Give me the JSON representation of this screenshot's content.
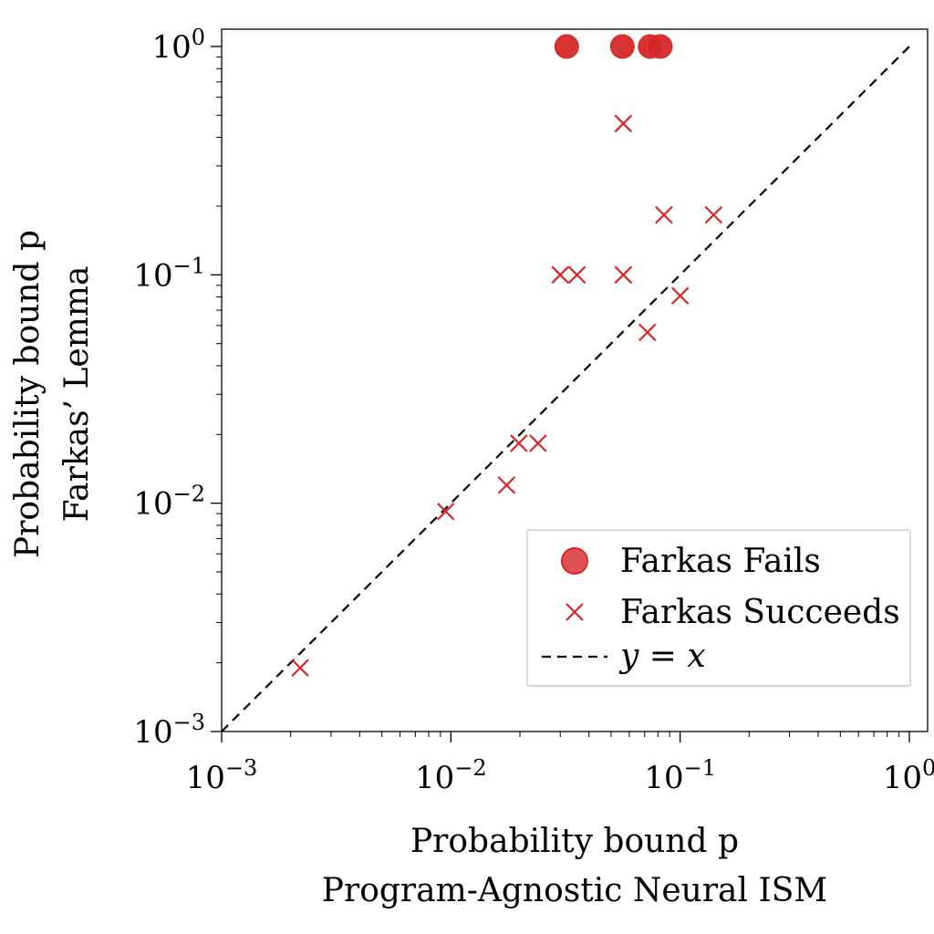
{
  "chart_data": {
    "type": "scatter",
    "xscale": "log",
    "yscale": "log",
    "xlim": [
      0.001,
      1
    ],
    "ylim": [
      0.001,
      1
    ],
    "xlabel": [
      "Probability bound p",
      "Program-Agnostic Neural ISM"
    ],
    "ylabel": [
      "Probability bound p",
      "Farkas’ Lemma"
    ],
    "x_ticks": [
      {
        "value": 0.001,
        "base": "10",
        "exp": "−3"
      },
      {
        "value": 0.01,
        "base": "10",
        "exp": "−2"
      },
      {
        "value": 0.1,
        "base": "10",
        "exp": "−1"
      },
      {
        "value": 1,
        "base": "10",
        "exp": "0"
      }
    ],
    "y_ticks": [
      {
        "value": 0.001,
        "base": "10",
        "exp": "−3"
      },
      {
        "value": 0.01,
        "base": "10",
        "exp": "−2"
      },
      {
        "value": 0.1,
        "base": "10",
        "exp": "−1"
      },
      {
        "value": 1,
        "base": "10",
        "exp": "0"
      }
    ],
    "grid": false,
    "legend_position": "lower-right",
    "series": [
      {
        "name": "Farkas Fails",
        "marker": "circle",
        "color": "#d62728",
        "points": [
          {
            "x": 0.032,
            "y": 1.0
          },
          {
            "x": 0.056,
            "y": 1.0
          },
          {
            "x": 0.074,
            "y": 1.0
          },
          {
            "x": 0.082,
            "y": 1.0
          }
        ]
      },
      {
        "name": "Farkas Succeeds",
        "marker": "x",
        "color": "#d62728",
        "points": [
          {
            "x": 0.0022,
            "y": 0.0019
          },
          {
            "x": 0.0095,
            "y": 0.0092
          },
          {
            "x": 0.0175,
            "y": 0.012
          },
          {
            "x": 0.0198,
            "y": 0.0183
          },
          {
            "x": 0.024,
            "y": 0.0183
          },
          {
            "x": 0.03,
            "y": 0.1
          },
          {
            "x": 0.0355,
            "y": 0.1
          },
          {
            "x": 0.0565,
            "y": 0.1
          },
          {
            "x": 0.0565,
            "y": 0.46
          },
          {
            "x": 0.072,
            "y": 0.056
          },
          {
            "x": 0.085,
            "y": 0.183
          },
          {
            "x": 0.1,
            "y": 0.081
          },
          {
            "x": 0.14,
            "y": 0.183
          }
        ]
      },
      {
        "name": "y = x",
        "marker": "dashed-line",
        "color": "#000000",
        "points": [
          {
            "x": 0.001,
            "y": 0.001
          },
          {
            "x": 1,
            "y": 1
          }
        ]
      }
    ]
  }
}
